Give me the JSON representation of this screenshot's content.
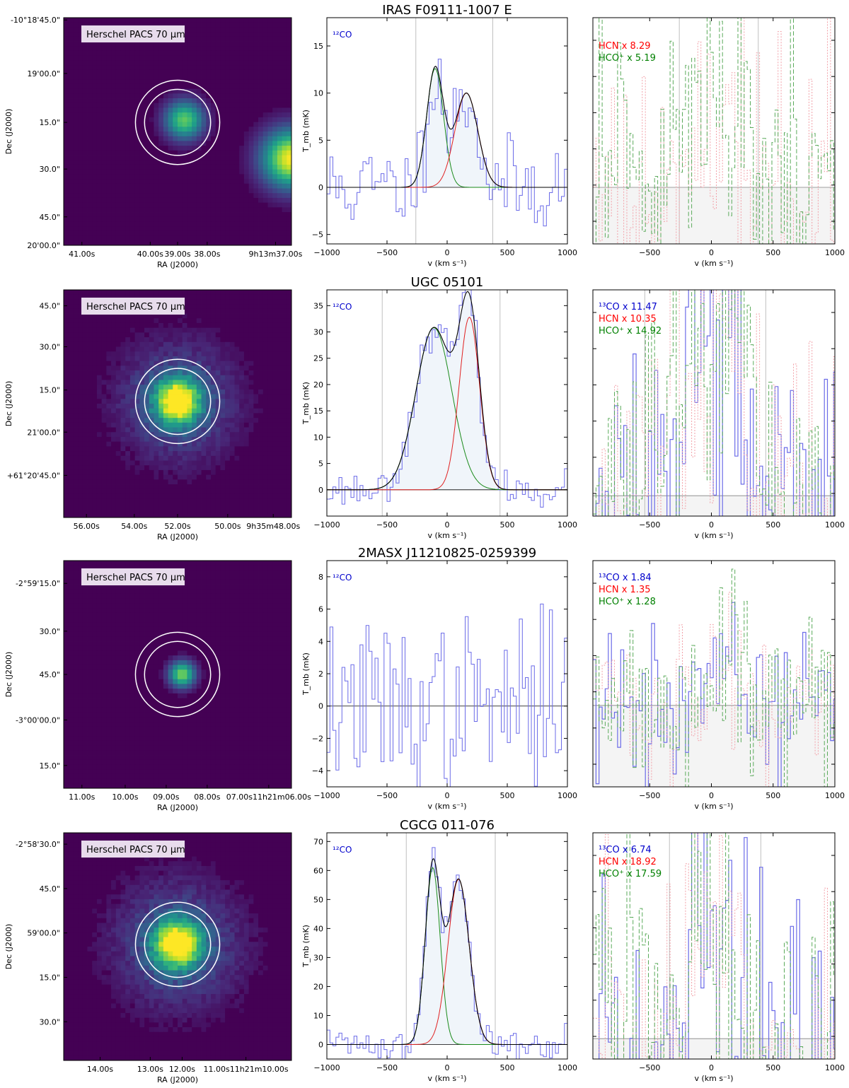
{
  "figure": {
    "rows": [
      {
        "title": "IRAS F09111-1007 E",
        "image": {
          "label": "Herschel PACS 70 μm",
          "dec_ticks": [
            "-10°18'45.0\"",
            "19'00.0\"",
            "15.0\"",
            "30.0\"",
            "45.0\"",
            "20'00.0\""
          ],
          "ra_ticks": [
            "41.00s",
            "40.00s",
            "39.00s",
            "38.00s",
            "9h13m37.00s"
          ],
          "xlabel": "RA (J2000)",
          "ylabel": "Dec (J2000)"
        },
        "co12": {
          "legend": "¹²CO",
          "ylabel": "T_mb (mK)",
          "xlabel": "v (km s⁻¹)",
          "yticks": [
            "−5",
            "0",
            "5",
            "10",
            "15"
          ],
          "xticks": [
            "−1000",
            "−500",
            "0",
            "500",
            "1000"
          ]
        },
        "dense": {
          "legends": [
            "HCN  x 8.29",
            "HCO⁺  x 5.19"
          ],
          "legend_colors": [
            "#ff0000",
            "#008000"
          ],
          "xlabel": "v (km s⁻¹)",
          "xticks": [
            "−500",
            "0",
            "500",
            "1000"
          ]
        }
      },
      {
        "title": "UGC 05101",
        "image": {
          "label": "Herschel PACS 70 μm",
          "dec_ticks": [
            "45.0\"",
            "30.0\"",
            "15.0\"",
            "21'00.0\"",
            "+61°20'45.0\""
          ],
          "ra_ticks": [
            "56.00s",
            "54.00s",
            "52.00s",
            "50.00s",
            "9h35m48.00s"
          ],
          "xlabel": "RA (J2000)",
          "ylabel": "Dec (J2000)"
        },
        "co12": {
          "legend": "¹²CO",
          "ylabel": "T_mb (mK)",
          "xlabel": "v (km s⁻¹)",
          "yticks": [
            "0",
            "5",
            "10",
            "15",
            "20",
            "25",
            "30",
            "35"
          ],
          "xticks": [
            "−1000",
            "−500",
            "0",
            "500",
            "1000"
          ]
        },
        "dense": {
          "legends": [
            "¹³CO x 11.47",
            "HCN  x 10.35",
            "HCO⁺  x 14.92"
          ],
          "legend_colors": [
            "#0000cc",
            "#ff0000",
            "#008000"
          ],
          "xlabel": "v (km s⁻¹)",
          "xticks": [
            "−500",
            "0",
            "500",
            "1000"
          ]
        }
      },
      {
        "title": "2MASX J11210825-0259399",
        "image": {
          "label": "Herschel PACS 70 μm",
          "dec_ticks": [
            "-2°59'15.0\"",
            "30.0\"",
            "45.0\"",
            "-3°00'00.0\"",
            "15.0\""
          ],
          "ra_ticks": [
            "11.00s",
            "10.00s",
            "09.00s",
            "08.00s",
            "07.00s11h21m06.00s"
          ],
          "xlabel": "RA (J2000)",
          "ylabel": "Dec (J2000)"
        },
        "co12": {
          "legend": "¹²CO",
          "ylabel": "T_mb (mK)",
          "xlabel": "v (km s⁻¹)",
          "yticks": [
            "−4",
            "−2",
            "0",
            "2",
            "4",
            "6",
            "8"
          ],
          "xticks": [
            "−1000",
            "−500",
            "0",
            "500",
            "1000"
          ]
        },
        "dense": {
          "legends": [
            "¹³CO x 1.84",
            "HCN  x 1.35",
            "HCO⁺  x 1.28"
          ],
          "legend_colors": [
            "#0000cc",
            "#ff0000",
            "#008000"
          ],
          "xlabel": "v (km s⁻¹)",
          "xticks": [
            "−500",
            "0",
            "500",
            "1000"
          ]
        }
      },
      {
        "title": "CGCG 011-076",
        "image": {
          "label": "Herschel PACS 70 μm",
          "dec_ticks": [
            "-2°58'30.0\"",
            "45.0\"",
            "59'00.0\"",
            "15.0\"",
            "30.0\""
          ],
          "ra_ticks": [
            "14.00s",
            "13.00s",
            "12.00s",
            "11.00s11h21m10.00s"
          ],
          "xlabel": "RA (J2000)",
          "ylabel": "Dec (J2000)"
        },
        "co12": {
          "legend": "¹²CO",
          "ylabel": "T_mb (mK)",
          "xlabel": "v (km s⁻¹)",
          "yticks": [
            "0",
            "10",
            "20",
            "30",
            "40",
            "50",
            "60",
            "70"
          ],
          "xticks": [
            "−1000",
            "−500",
            "0",
            "500",
            "1000"
          ]
        },
        "dense": {
          "legends": [
            "¹³CO x 6.74",
            "HCN  x 18.92",
            "HCO⁺  x 17.59"
          ],
          "legend_colors": [
            "#0000cc",
            "#ff0000",
            "#008000"
          ],
          "xlabel": "v (km s⁻¹)",
          "xticks": [
            "−500",
            "0",
            "500",
            "1000"
          ]
        }
      }
    ]
  },
  "chart_data": [
    {
      "type": "line",
      "title": "IRAS F09111-1007 E",
      "series": [
        {
          "name": "12CO spectrum",
          "step": true
        },
        {
          "name": "Gaussian 1",
          "amplitude": 12.6,
          "center": -100,
          "sigma": 70
        },
        {
          "name": "Gaussian 2",
          "amplitude": 10.0,
          "center": 160,
          "sigma": 95
        }
      ],
      "xlabel": "v (km s⁻¹)",
      "ylabel": "T_mb (mK)",
      "xlim": [
        -1000,
        1000
      ],
      "ylim": [
        -6,
        18
      ],
      "vlines": [
        -260,
        380
      ],
      "noise_rms": 2.5,
      "seed": 11
    },
    {
      "type": "line",
      "title": "UGC 05101",
      "series": [
        {
          "name": "12CO spectrum",
          "step": true
        },
        {
          "name": "Gaussian 1",
          "amplitude": 30.8,
          "center": -110,
          "sigma": 150
        },
        {
          "name": "Gaussian 2",
          "amplitude": 32.8,
          "center": 185,
          "sigma": 85
        }
      ],
      "xlabel": "v (km s⁻¹)",
      "ylabel": "T_mb (mK)",
      "xlim": [
        -1000,
        1000
      ],
      "ylim": [
        -5,
        38
      ],
      "vlines": [
        -540,
        440
      ],
      "noise_rms": 1.6,
      "seed": 23
    },
    {
      "type": "line",
      "title": "2MASX J11210825-0259399",
      "series": [
        {
          "name": "12CO spectrum",
          "step": true
        }
      ],
      "xlabel": "v (km s⁻¹)",
      "ylabel": "T_mb (mK)",
      "xlim": [
        -1000,
        1000
      ],
      "ylim": [
        -5,
        9
      ],
      "vlines": [],
      "noise_rms": 2.6,
      "seed": 37
    },
    {
      "type": "line",
      "title": "CGCG 011-076",
      "series": [
        {
          "name": "12CO spectrum",
          "step": true
        },
        {
          "name": "Gaussian 1",
          "amplitude": 61,
          "center": -120,
          "sigma": 62
        },
        {
          "name": "Gaussian 2",
          "amplitude": 57,
          "center": 95,
          "sigma": 88
        }
      ],
      "xlabel": "v (km s⁻¹)",
      "ylabel": "T_mb (mK)",
      "xlim": [
        -1000,
        1000
      ],
      "ylim": [
        -5,
        73
      ],
      "vlines": [
        -340,
        400
      ],
      "noise_rms": 3.0,
      "seed": 41
    }
  ]
}
